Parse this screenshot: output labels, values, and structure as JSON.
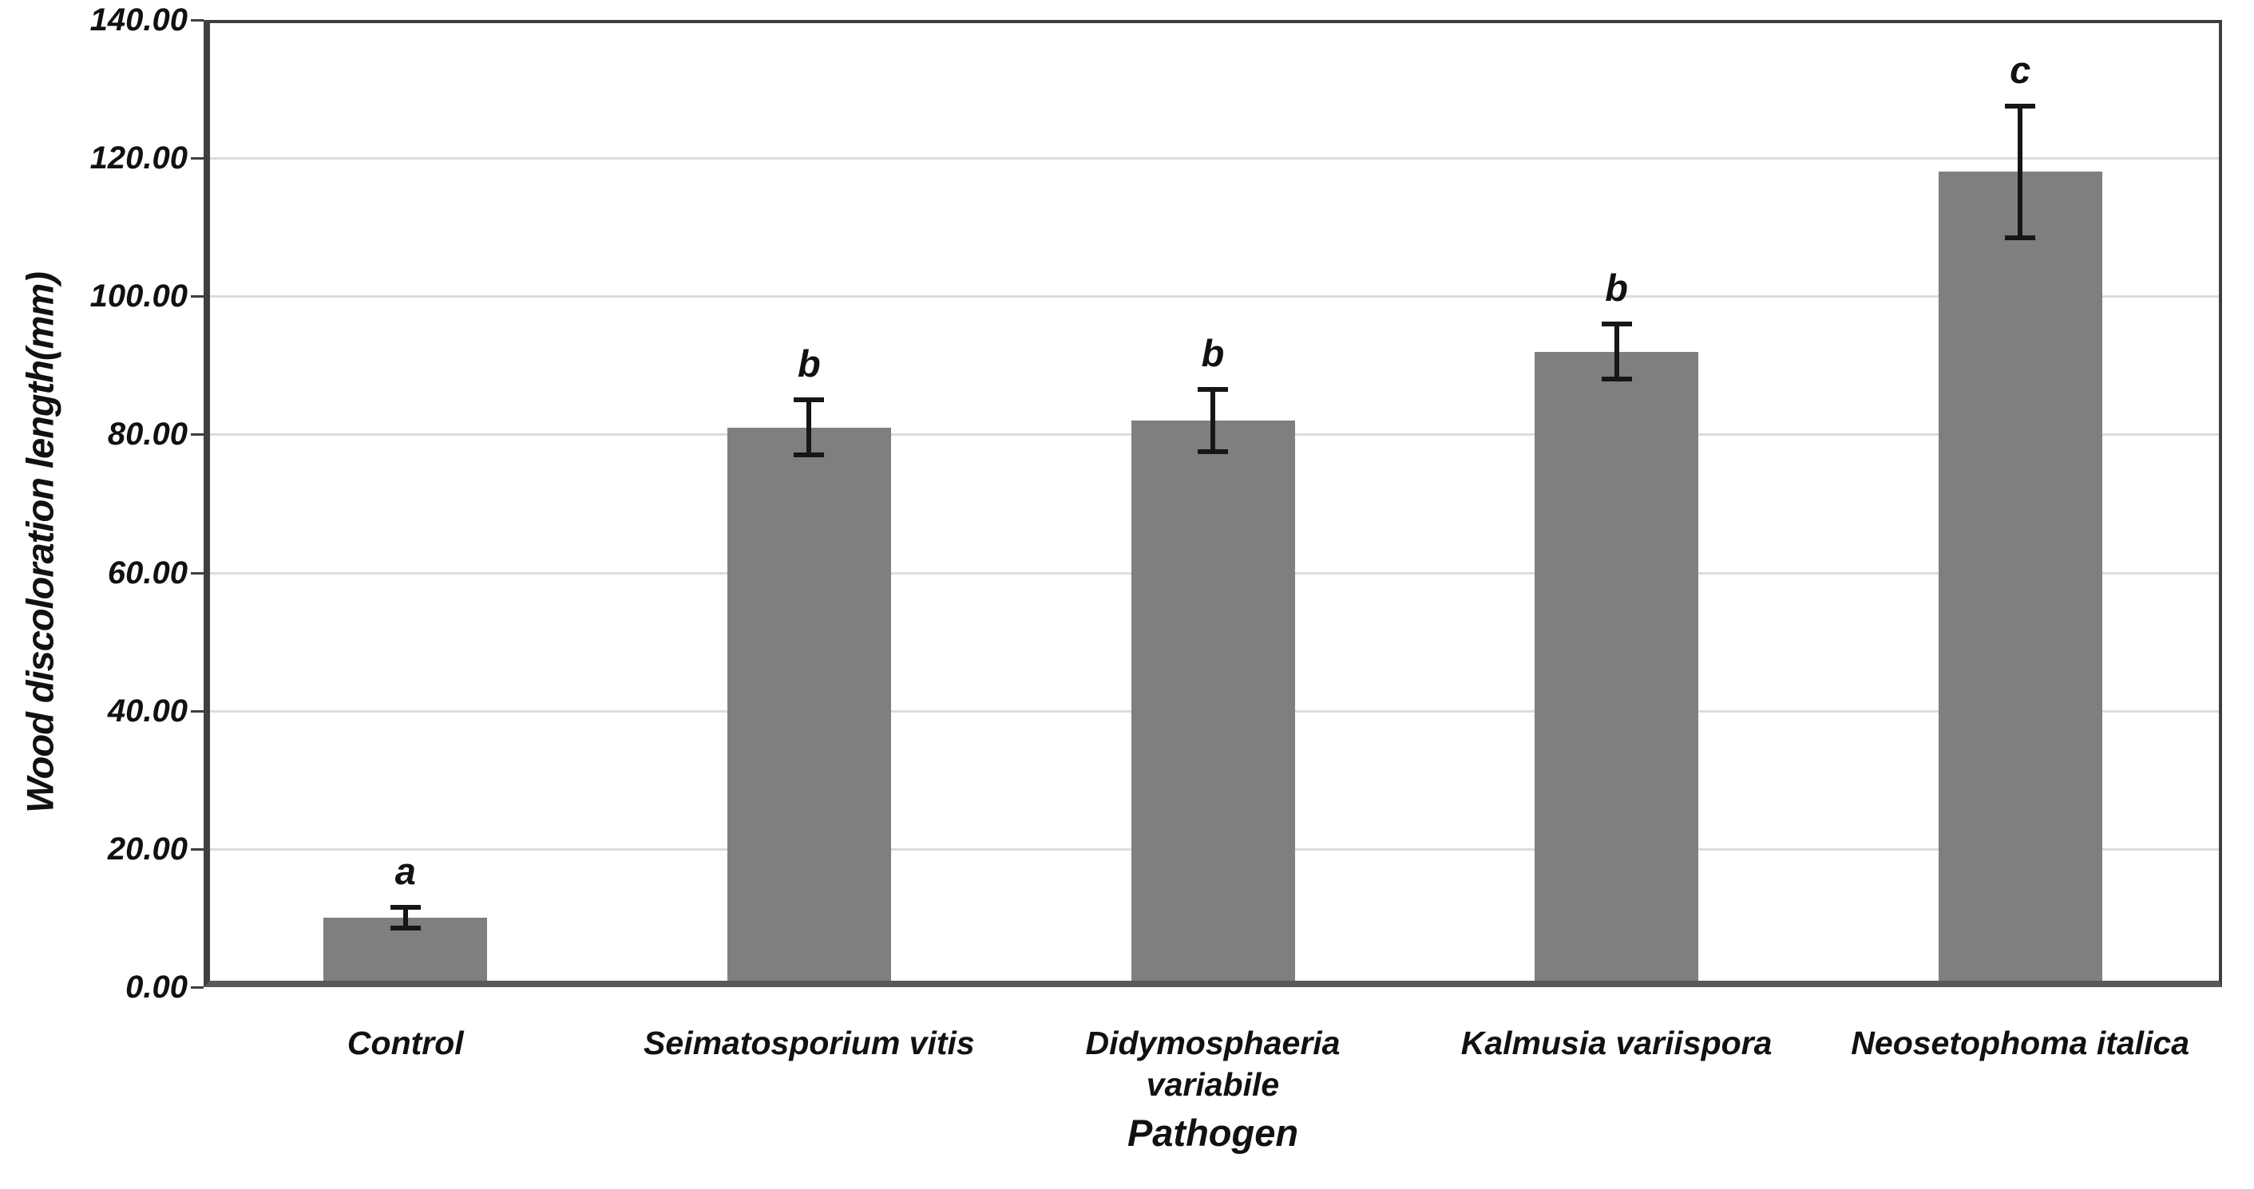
{
  "chart_data": {
    "type": "bar",
    "title": "",
    "xlabel": "Pathogen",
    "ylabel": "Wood discoloration length(mm)",
    "ylim": [
      0,
      140
    ],
    "ytick_step": 20,
    "ytick_labels": [
      "0.00",
      "20.00",
      "40.00",
      "60.00",
      "80.00",
      "100.00",
      "120.00",
      "140.00"
    ],
    "grid": true,
    "legend_position": "none",
    "categories": [
      "Control",
      "Seimatosporium vitis",
      "Didymosphaeria variabile",
      "Kalmusia variispora",
      "Neosetophoma italica"
    ],
    "category_label_lines": [
      [
        "Control"
      ],
      [
        "Seimatosporium vitis"
      ],
      [
        "Didymosphaeria",
        "variabile"
      ],
      [
        "Kalmusia variispora"
      ],
      [
        "Neosetophoma italica"
      ]
    ],
    "series": [
      {
        "name": "Wood discoloration length",
        "values": [
          10,
          81,
          82,
          92,
          118
        ],
        "error_bars": [
          1.5,
          4,
          4.5,
          4,
          9.5
        ],
        "significance_letters": [
          "a",
          "b",
          "b",
          "b",
          "c"
        ]
      }
    ],
    "colors": {
      "bar_fill": "#7f7f7f",
      "gridline": "#dcdcdc",
      "axis_frame": "#3f3f3f",
      "bottom_axis": "#595959",
      "error_bar": "#161616",
      "text": "#111111"
    }
  }
}
